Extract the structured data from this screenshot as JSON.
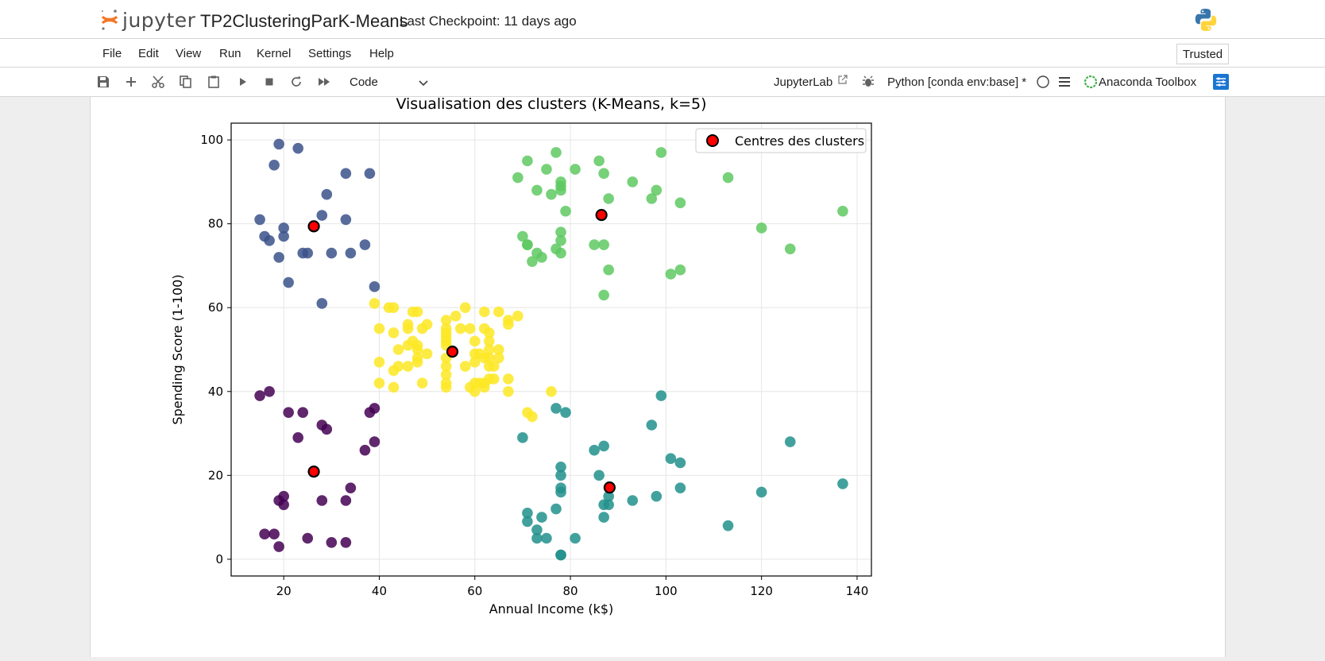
{
  "header": {
    "logo_text": "jupyter",
    "notebook_title": "TP2ClusteringParK-Means",
    "checkpoint": "Last Checkpoint: 11 days ago"
  },
  "menu": [
    "File",
    "Edit",
    "View",
    "Run",
    "Kernel",
    "Settings",
    "Help"
  ],
  "trusted_label": "Trusted",
  "toolbar": {
    "cell_type": "Code",
    "jupyterlab_link": "JupyterLab",
    "kernel_name": "Python [conda env:base] *",
    "anaconda_label": "Anaconda Toolbox"
  },
  "icons": [
    "save-icon",
    "add-icon",
    "cut-icon",
    "copy-icon",
    "paste-icon",
    "run-icon",
    "stop-icon",
    "restart-icon",
    "fast-forward-icon",
    "chevron-down-icon",
    "external-link-icon",
    "bug-icon",
    "kernel-status-icon",
    "menu-icon",
    "anaconda-icon",
    "settings-panel-icon",
    "python-logo-icon",
    "jupyter-logo-icon"
  ],
  "chart_data": {
    "type": "scatter",
    "title": "Visualisation des clusters (K-Means, k=5)",
    "xlabel": "Annual Income (k$)",
    "ylabel": "Spending Score (1-100)",
    "xlim": [
      9,
      143
    ],
    "ylim": [
      -4,
      104
    ],
    "xticks": [
      20,
      40,
      60,
      80,
      100,
      120,
      140
    ],
    "yticks": [
      0,
      20,
      40,
      60,
      80,
      100
    ],
    "grid": true,
    "legend": {
      "position": "top-right",
      "entries": [
        "Centres des clusters"
      ]
    },
    "colors": {
      "navy": "#3b528b",
      "purple": "#440154",
      "yellow": "#fde725",
      "green": "#5ec962",
      "teal": "#21918c",
      "centroid": "#ff0000"
    },
    "series": [
      {
        "color": "#3b528b",
        "points": [
          [
            15,
            81
          ],
          [
            16,
            77
          ],
          [
            17,
            76
          ],
          [
            18,
            94
          ],
          [
            19,
            72
          ],
          [
            19,
            99
          ],
          [
            20,
            77
          ],
          [
            20,
            79
          ],
          [
            21,
            66
          ],
          [
            23,
            98
          ],
          [
            24,
            73
          ],
          [
            25,
            73
          ],
          [
            28,
            82
          ],
          [
            28,
            61
          ],
          [
            29,
            87
          ],
          [
            30,
            73
          ],
          [
            33,
            92
          ],
          [
            33,
            81
          ],
          [
            34,
            73
          ],
          [
            37,
            75
          ],
          [
            38,
            92
          ],
          [
            39,
            65
          ]
        ]
      },
      {
        "color": "#440154",
        "points": [
          [
            15,
            39
          ],
          [
            16,
            6
          ],
          [
            17,
            40
          ],
          [
            18,
            6
          ],
          [
            19,
            3
          ],
          [
            19,
            14
          ],
          [
            20,
            15
          ],
          [
            20,
            13
          ],
          [
            21,
            35
          ],
          [
            23,
            29
          ],
          [
            24,
            35
          ],
          [
            25,
            5
          ],
          [
            28,
            32
          ],
          [
            28,
            14
          ],
          [
            29,
            31
          ],
          [
            30,
            4
          ],
          [
            33,
            4
          ],
          [
            33,
            14
          ],
          [
            34,
            17
          ],
          [
            37,
            26
          ],
          [
            38,
            35
          ],
          [
            39,
            36
          ],
          [
            39,
            28
          ]
        ]
      },
      {
        "color": "#fde725",
        "points": [
          [
            39,
            61
          ],
          [
            40,
            55
          ],
          [
            40,
            47
          ],
          [
            40,
            42
          ],
          [
            42,
            60
          ],
          [
            43,
            60
          ],
          [
            43,
            54
          ],
          [
            43,
            45
          ],
          [
            43,
            41
          ],
          [
            44,
            50
          ],
          [
            44,
            46
          ],
          [
            46,
            56
          ],
          [
            46,
            55
          ],
          [
            46,
            51
          ],
          [
            46,
            46
          ],
          [
            47,
            59
          ],
          [
            47,
            52
          ],
          [
            48,
            59
          ],
          [
            48,
            51
          ],
          [
            48,
            50
          ],
          [
            48,
            48
          ],
          [
            48,
            47
          ],
          [
            49,
            55
          ],
          [
            49,
            42
          ],
          [
            50,
            56
          ],
          [
            50,
            49
          ],
          [
            54,
            57
          ],
          [
            54,
            55
          ],
          [
            54,
            54
          ],
          [
            54,
            53
          ],
          [
            54,
            52
          ],
          [
            54,
            51
          ],
          [
            54,
            48
          ],
          [
            54,
            46
          ],
          [
            54,
            44
          ],
          [
            54,
            42
          ],
          [
            54,
            41
          ],
          [
            56,
            58
          ],
          [
            57,
            55
          ],
          [
            58,
            60
          ],
          [
            58,
            46
          ],
          [
            59,
            55
          ],
          [
            59,
            41
          ],
          [
            60,
            52
          ],
          [
            60,
            49
          ],
          [
            60,
            47
          ],
          [
            60,
            42
          ],
          [
            60,
            40
          ],
          [
            61,
            49
          ],
          [
            61,
            42
          ],
          [
            62,
            59
          ],
          [
            62,
            55
          ],
          [
            62,
            48
          ],
          [
            62,
            42
          ],
          [
            62,
            41
          ],
          [
            63,
            54
          ],
          [
            63,
            52
          ],
          [
            63,
            50
          ],
          [
            63,
            48
          ],
          [
            63,
            46
          ],
          [
            63,
            43
          ],
          [
            64,
            46
          ],
          [
            64,
            43
          ],
          [
            65,
            59
          ],
          [
            65,
            50
          ],
          [
            65,
            48
          ],
          [
            67,
            57
          ],
          [
            67,
            56
          ],
          [
            67,
            43
          ],
          [
            67,
            40
          ],
          [
            69,
            58
          ],
          [
            71,
            35
          ],
          [
            72,
            34
          ],
          [
            76,
            40
          ]
        ]
      },
      {
        "color": "#5ec962",
        "points": [
          [
            69,
            91
          ],
          [
            70,
            77
          ],
          [
            71,
            95
          ],
          [
            71,
            75
          ],
          [
            71,
            75
          ],
          [
            72,
            71
          ],
          [
            73,
            88
          ],
          [
            73,
            73
          ],
          [
            74,
            72
          ],
          [
            75,
            93
          ],
          [
            76,
            87
          ],
          [
            77,
            97
          ],
          [
            77,
            74
          ],
          [
            78,
            90
          ],
          [
            78,
            89
          ],
          [
            78,
            88
          ],
          [
            78,
            78
          ],
          [
            78,
            76
          ],
          [
            78,
            73
          ],
          [
            79,
            83
          ],
          [
            81,
            93
          ],
          [
            85,
            75
          ],
          [
            86,
            95
          ],
          [
            87,
            92
          ],
          [
            87,
            75
          ],
          [
            87,
            63
          ],
          [
            88,
            86
          ],
          [
            88,
            69
          ],
          [
            93,
            90
          ],
          [
            97,
            86
          ],
          [
            98,
            88
          ],
          [
            99,
            97
          ],
          [
            101,
            68
          ],
          [
            103,
            85
          ],
          [
            103,
            69
          ],
          [
            113,
            91
          ],
          [
            120,
            79
          ],
          [
            126,
            74
          ],
          [
            137,
            83
          ]
        ]
      },
      {
        "color": "#21918c",
        "points": [
          [
            70,
            29
          ],
          [
            71,
            11
          ],
          [
            71,
            9
          ],
          [
            73,
            5
          ],
          [
            73,
            7
          ],
          [
            74,
            10
          ],
          [
            75,
            5
          ],
          [
            77,
            12
          ],
          [
            77,
            36
          ],
          [
            78,
            22
          ],
          [
            78,
            17
          ],
          [
            78,
            20
          ],
          [
            78,
            16
          ],
          [
            78,
            1
          ],
          [
            78,
            1
          ],
          [
            79,
            35
          ],
          [
            81,
            5
          ],
          [
            85,
            26
          ],
          [
            86,
            20
          ],
          [
            87,
            27
          ],
          [
            87,
            13
          ],
          [
            87,
            10
          ],
          [
            88,
            13
          ],
          [
            88,
            15
          ],
          [
            93,
            14
          ],
          [
            97,
            32
          ],
          [
            98,
            15
          ],
          [
            99,
            39
          ],
          [
            101,
            24
          ],
          [
            103,
            17
          ],
          [
            103,
            23
          ],
          [
            113,
            8
          ],
          [
            120,
            16
          ],
          [
            126,
            28
          ],
          [
            137,
            18
          ]
        ]
      }
    ],
    "centroids": [
      [
        26.3,
        79.4
      ],
      [
        55.3,
        49.5
      ],
      [
        86.5,
        82.1
      ],
      [
        26.3,
        20.9
      ],
      [
        88.2,
        17.1
      ]
    ]
  }
}
